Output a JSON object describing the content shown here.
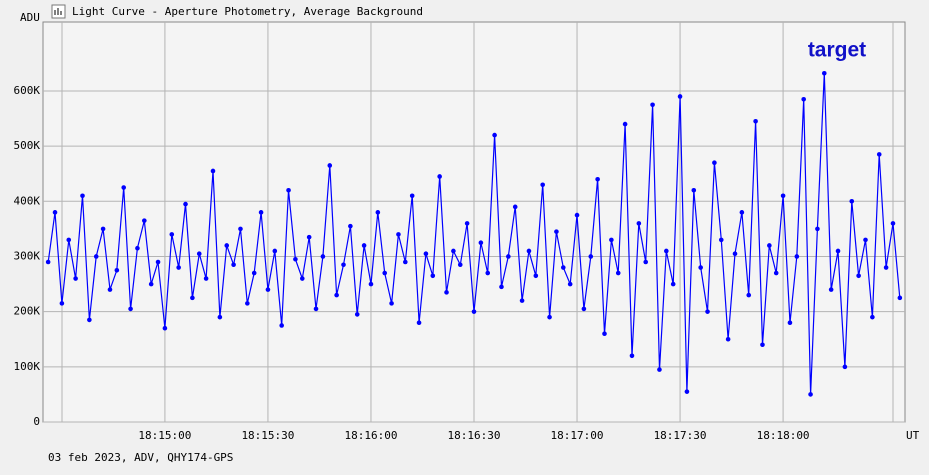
{
  "chart_data": {
    "type": "line",
    "title": "Light Curve - Aperture Photometry, Average Background",
    "y_label": "ADU",
    "x_label": "UT",
    "footer": "03 feb 2023, ADV, QHY174-GPS",
    "annotation": "target",
    "color": "#0000ff",
    "grid": true,
    "xlim": [
      65664.5,
      65915.5
    ],
    "xticks": [
      {
        "value": 65700,
        "label": "18:15:00"
      },
      {
        "value": 65730,
        "label": "18:15:30"
      },
      {
        "value": 65760,
        "label": "18:16:00"
      },
      {
        "value": 65790,
        "label": "18:16:30"
      },
      {
        "value": 65820,
        "label": "18:17:00"
      },
      {
        "value": 65850,
        "label": "18:17:30"
      },
      {
        "value": 65880,
        "label": "18:18:00"
      }
    ],
    "ylim": [
      0,
      725000
    ],
    "yticks": [
      0,
      {
        "value": 100000,
        "label": "100K"
      },
      {
        "value": 200000,
        "label": "200K"
      },
      {
        "value": 300000,
        "label": "300K"
      },
      {
        "value": 400000,
        "label": "400K"
      },
      {
        "value": 500000,
        "label": "500K"
      },
      {
        "value": 600000,
        "label": "600K"
      }
    ],
    "x": [
      65666,
      65668,
      65670,
      65672,
      65674,
      65676,
      65678,
      65680,
      65682,
      65684,
      65686,
      65688,
      65690,
      65692,
      65694,
      65696,
      65698,
      65700,
      65702,
      65704,
      65706,
      65708,
      65710,
      65712,
      65714,
      65716,
      65718,
      65720,
      65722,
      65724,
      65726,
      65728,
      65730,
      65732,
      65734,
      65736,
      65738,
      65740,
      65742,
      65744,
      65746,
      65748,
      65750,
      65752,
      65754,
      65756,
      65758,
      65760,
      65762,
      65764,
      65766,
      65768,
      65770,
      65772,
      65774,
      65776,
      65778,
      65780,
      65782,
      65784,
      65786,
      65788,
      65790,
      65792,
      65794,
      65796,
      65798,
      65800,
      65802,
      65804,
      65806,
      65808,
      65810,
      65812,
      65814,
      65816,
      65818,
      65820,
      65822,
      65824,
      65826,
      65828,
      65830,
      65832,
      65834,
      65836,
      65838,
      65840,
      65842,
      65844,
      65846,
      65848,
      65850,
      65852,
      65854,
      65856,
      65858,
      65860,
      65862,
      65864,
      65866,
      65868,
      65870,
      65872,
      65874,
      65876,
      65878,
      65880,
      65882,
      65884,
      65886,
      65888,
      65890,
      65892,
      65894,
      65896,
      65898,
      65900,
      65902,
      65904,
      65906,
      65908,
      65910,
      65912,
      65914
    ],
    "values": [
      290000,
      380000,
      215000,
      330000,
      260000,
      410000,
      185000,
      300000,
      350000,
      240000,
      275000,
      425000,
      205000,
      315000,
      365000,
      250000,
      290000,
      170000,
      340000,
      280000,
      395000,
      225000,
      305000,
      260000,
      455000,
      190000,
      320000,
      285000,
      350000,
      215000,
      270000,
      380000,
      240000,
      310000,
      175000,
      420000,
      295000,
      260000,
      335000,
      205000,
      300000,
      465000,
      230000,
      285000,
      355000,
      195000,
      320000,
      250000,
      380000,
      270000,
      215000,
      340000,
      290000,
      410000,
      180000,
      305000,
      265000,
      445000,
      235000,
      310000,
      285000,
      360000,
      200000,
      325000,
      270000,
      520000,
      245000,
      300000,
      390000,
      220000,
      310000,
      265000,
      430000,
      190000,
      345000,
      280000,
      250000,
      375000,
      205000,
      300000,
      440000,
      160000,
      330000,
      270000,
      540000,
      120000,
      360000,
      290000,
      575000,
      95000,
      310000,
      250000,
      590000,
      55000,
      420000,
      280000,
      200000,
      470000,
      330000,
      150000,
      305000,
      380000,
      230000,
      545000,
      140000,
      320000,
      270000,
      410000,
      180000,
      300000,
      585000,
      50000,
      350000,
      632000,
      240000,
      310000,
      100000,
      400000,
      265000,
      330000,
      190000,
      485000,
      280000,
      360000,
      225000
    ]
  }
}
